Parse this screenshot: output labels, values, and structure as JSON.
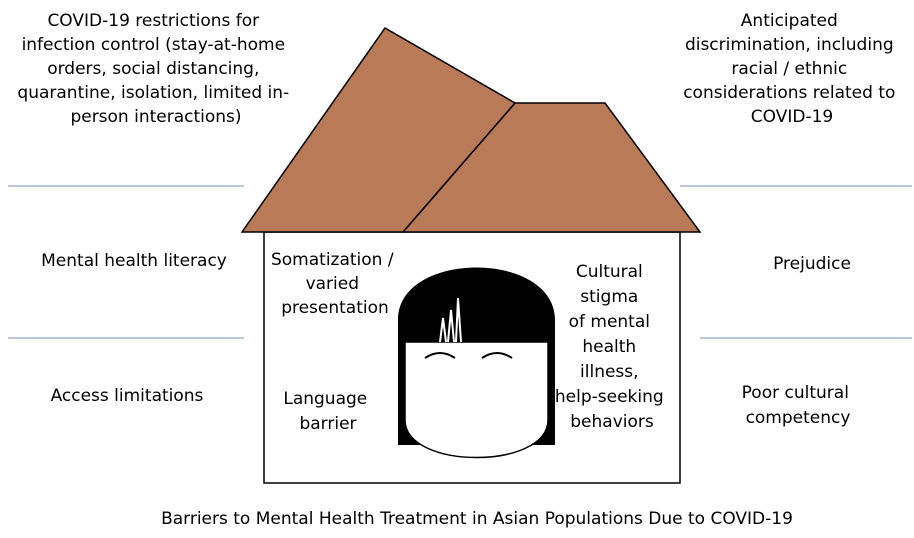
{
  "top_left": {
    "lines": [
      "COVID-19 restrictions for",
      "infection control (stay-at-home",
      "orders, social distancing,",
      "quarantine, isolation, limited in-",
      "person interactions)"
    ]
  },
  "top_right": {
    "lines": [
      "Anticipated",
      "discrimination, including",
      "racial / ethnic",
      "considerations related to",
      "COVID-19"
    ]
  },
  "middle_left": "Mental health literacy",
  "middle_right": "Prejudice",
  "bottom_left": "Access limitations",
  "bottom_right": {
    "lines": [
      "Poor cultural",
      "competency"
    ]
  },
  "house": {
    "somatization": {
      "lines": [
        "Somatization /",
        "varied",
        "presentation"
      ]
    },
    "language": {
      "lines": [
        "Language",
        "barrier"
      ]
    },
    "stigma": {
      "lines": [
        "Cultural",
        "stigma",
        "of mental",
        "health",
        "illness,",
        "help-seeking",
        "behaviors"
      ]
    }
  },
  "caption": "Barriers to Mental Health Treatment in Asian Populations Due to COVID-19"
}
